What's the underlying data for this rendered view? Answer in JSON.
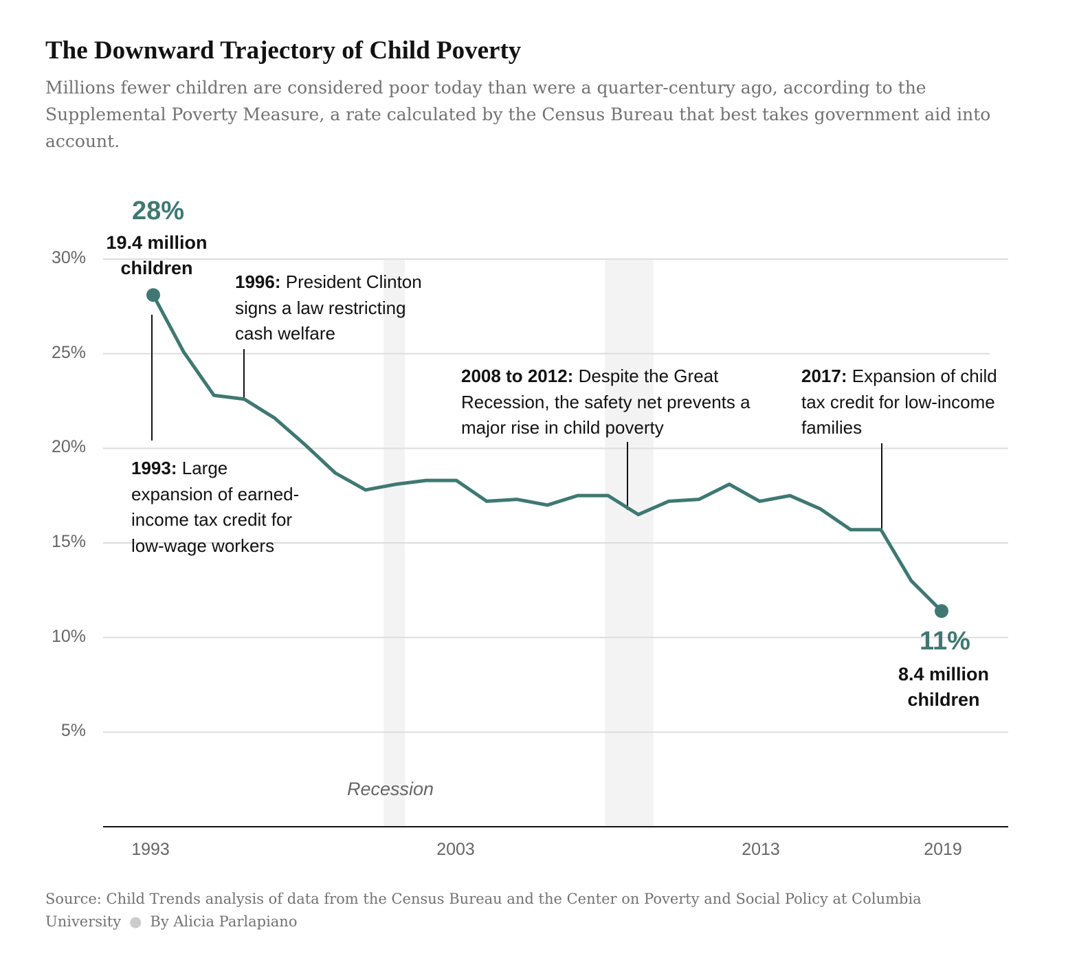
{
  "header": {
    "title": "The Downward Trajectory of Child Poverty",
    "subtitle": "Millions fewer children are considered poor today than were a quarter-century ago, according to the Supplemental Poverty Measure, a rate calculated by the Census Bureau that best takes government aid into account."
  },
  "chart_data": {
    "type": "line",
    "title": "",
    "xlabel": "",
    "ylabel": "",
    "xlim": [
      1993,
      2019
    ],
    "ylim": [
      0,
      30
    ],
    "x_ticks": [
      "1993",
      "2003",
      "2013",
      "2019"
    ],
    "y_ticks": [
      "30%",
      "25%",
      "20%",
      "15%",
      "10%",
      "5%"
    ],
    "grid": true,
    "line_color": "#3f7872",
    "recession_label": "Recession",
    "recessions": [
      [
        2000.6,
        2001.3
      ],
      [
        2007.9,
        2009.5
      ]
    ],
    "series": [
      {
        "x": [
          1993,
          1994,
          1995,
          1996,
          1997,
          1998,
          1999,
          2000,
          2001,
          2002,
          2003,
          2004,
          2005,
          2006,
          2007,
          2008,
          2009,
          2010,
          2011,
          2012,
          2013,
          2014,
          2015,
          2016,
          2017,
          2018,
          2019
        ],
        "values": [
          28.1,
          25.1,
          22.8,
          22.6,
          21.6,
          20.2,
          18.7,
          17.8,
          18.1,
          18.3,
          18.3,
          17.2,
          17.3,
          17.0,
          17.5,
          17.5,
          16.5,
          17.2,
          17.3,
          18.1,
          17.2,
          17.5,
          16.8,
          15.7,
          15.7,
          13.0,
          11.4
        ]
      }
    ],
    "endpoints": {
      "start": {
        "pct": "28%",
        "count": "19.4 million children"
      },
      "end": {
        "pct": "11%",
        "count_line1": "8.4 million",
        "count_line2": "children"
      }
    },
    "annotations": [
      {
        "year": "1993:",
        "text": "Large expansion of earned-income tax credit for low-wage workers"
      },
      {
        "year": "1996:",
        "text": "President Clinton signs a law restricting cash welfare"
      },
      {
        "year": "2008 to 2012:",
        "text": "Despite the Great Recession, the safety net prevents a major rise in child poverty"
      },
      {
        "year": "2017:",
        "text": "Expansion of child tax credit for low-income families"
      }
    ]
  },
  "footer": {
    "source": "Source: Child Trends analysis of data from the Census Bureau and the Center on Poverty and Social Policy at Columbia University",
    "byline": "By Alicia Parlapiano"
  }
}
